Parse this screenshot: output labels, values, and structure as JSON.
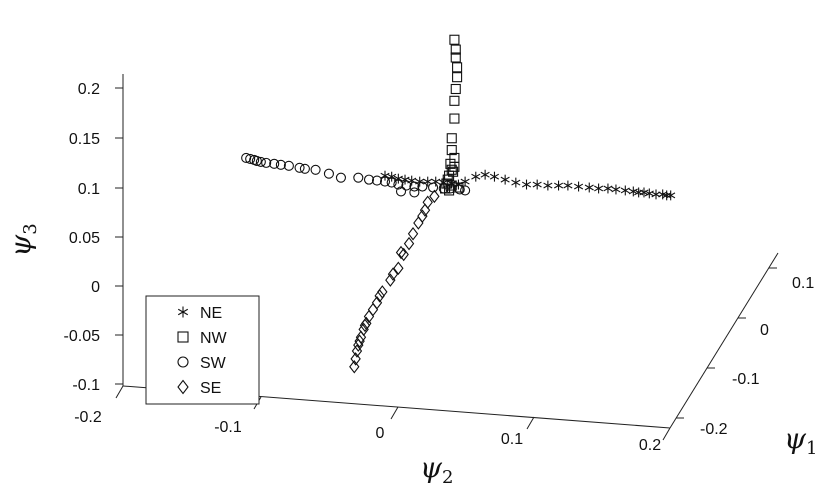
{
  "chart_data": {
    "type": "scatter",
    "title": "",
    "xlabel": "ψ1",
    "ylabel": "ψ2",
    "zlabel": "ψ3",
    "axis_titles": {
      "psi1": {
        "base": "ψ",
        "sub": "1"
      },
      "psi2": {
        "base": "ψ",
        "sub": "2"
      },
      "psi3": {
        "base": "ψ",
        "sub": "3"
      }
    },
    "psi3_ticks": [
      "0.2",
      "0.15",
      "0.1",
      "0.05",
      "0",
      "-0.05",
      "-0.1"
    ],
    "psi2_ticks": [
      "-0.2",
      "-0.1",
      "0",
      "0.1",
      "0.2"
    ],
    "psi1_ticks": [
      "0.1",
      "0",
      "-0.1",
      "-0.2"
    ],
    "legend": {
      "position": "bottom-left",
      "entries": [
        {
          "label": "NE",
          "marker": "asterisk"
        },
        {
          "label": "NW",
          "marker": "square"
        },
        {
          "label": "SW",
          "marker": "circle"
        },
        {
          "label": "SE",
          "marker": "diamond"
        }
      ]
    },
    "series": [
      {
        "name": "NE",
        "marker": "asterisk",
        "points": [
          [
            0.0,
            0.112
          ],
          [
            0.005,
            0.111
          ],
          [
            0.01,
            0.109
          ],
          [
            0.015,
            0.108
          ],
          [
            0.02,
            0.107
          ],
          [
            0.026,
            0.106
          ],
          [
            0.032,
            0.106
          ],
          [
            0.038,
            0.106
          ],
          [
            0.044,
            0.105
          ],
          [
            0.05,
            0.104
          ],
          [
            0.055,
            0.103
          ],
          [
            0.06,
            0.106
          ],
          [
            0.068,
            0.111
          ],
          [
            0.075,
            0.113
          ],
          [
            0.082,
            0.111
          ],
          [
            0.09,
            0.108
          ],
          [
            0.098,
            0.105
          ],
          [
            0.106,
            0.103
          ],
          [
            0.114,
            0.103
          ],
          [
            0.122,
            0.102
          ],
          [
            0.13,
            0.102
          ],
          [
            0.137,
            0.102
          ],
          [
            0.145,
            0.101
          ],
          [
            0.153,
            0.1
          ],
          [
            0.16,
            0.099
          ],
          [
            0.167,
            0.099
          ],
          [
            0.173,
            0.098
          ],
          [
            0.18,
            0.097
          ],
          [
            0.186,
            0.096
          ],
          [
            0.19,
            0.095
          ],
          [
            0.194,
            0.095
          ],
          [
            0.198,
            0.094
          ],
          [
            0.203,
            0.093
          ],
          [
            0.208,
            0.093
          ],
          [
            0.211,
            0.092
          ],
          [
            0.214,
            0.092
          ]
        ]
      },
      {
        "name": "NW",
        "marker": "square",
        "points": [
          [
            0.052,
            0.25
          ],
          [
            0.053,
            0.24
          ],
          [
            0.053,
            0.232
          ],
          [
            0.054,
            0.222
          ],
          [
            0.054,
            0.212
          ],
          [
            0.053,
            0.2
          ],
          [
            0.052,
            0.188
          ],
          [
            0.052,
            0.17
          ],
          [
            0.05,
            0.15
          ],
          [
            0.05,
            0.138
          ],
          [
            0.052,
            0.13
          ],
          [
            0.049,
            0.124
          ],
          [
            0.05,
            0.118
          ],
          [
            0.048,
            0.112
          ],
          [
            0.047,
            0.108
          ],
          [
            0.046,
            0.104
          ],
          [
            0.05,
            0.102
          ],
          [
            0.055,
            0.1
          ],
          [
            0.045,
            0.099
          ],
          [
            0.048,
            0.097
          ],
          [
            0.052,
            0.121
          ],
          [
            0.051,
            0.116
          ]
        ]
      },
      {
        "name": "SW",
        "marker": "circle",
        "points": [
          [
            -0.104,
            0.13
          ],
          [
            -0.101,
            0.129
          ],
          [
            -0.098,
            0.128
          ],
          [
            -0.096,
            0.127
          ],
          [
            -0.093,
            0.126
          ],
          [
            -0.089,
            0.125
          ],
          [
            -0.083,
            0.124
          ],
          [
            -0.078,
            0.123
          ],
          [
            -0.072,
            0.122
          ],
          [
            -0.064,
            0.12
          ],
          [
            -0.06,
            0.119
          ],
          [
            -0.052,
            0.118
          ],
          [
            -0.042,
            0.114
          ],
          [
            -0.033,
            0.11
          ],
          [
            -0.02,
            0.11
          ],
          [
            -0.012,
            0.108
          ],
          [
            -0.006,
            0.107
          ],
          [
            0.0,
            0.106
          ],
          [
            0.005,
            0.105
          ],
          [
            0.01,
            0.103
          ],
          [
            0.016,
            0.102
          ],
          [
            0.022,
            0.101
          ],
          [
            0.028,
            0.101
          ],
          [
            0.036,
            0.1
          ],
          [
            0.044,
            0.099
          ],
          [
            0.049,
            0.099
          ],
          [
            0.056,
            0.098
          ],
          [
            0.06,
            0.097
          ],
          [
            0.012,
            0.096
          ],
          [
            0.022,
            0.095
          ]
        ]
      },
      {
        "name": "SE",
        "marker": "diamond",
        "points": [
          [
            0.037,
            0.091
          ],
          [
            0.032,
            0.085
          ],
          [
            0.03,
            0.077
          ],
          [
            0.025,
            0.064
          ],
          [
            0.021,
            0.053
          ],
          [
            0.018,
            0.043
          ],
          [
            0.014,
            0.032
          ],
          [
            0.01,
            0.018
          ],
          [
            0.004,
            0.006
          ],
          [
            -0.002,
            -0.006
          ],
          [
            -0.006,
            -0.017
          ],
          [
            -0.009,
            -0.024
          ],
          [
            -0.012,
            -0.031
          ],
          [
            -0.014,
            -0.038
          ],
          [
            -0.016,
            -0.044
          ],
          [
            -0.018,
            -0.052
          ],
          [
            -0.02,
            -0.06
          ],
          [
            -0.021,
            -0.066
          ],
          [
            -0.022,
            -0.074
          ],
          [
            -0.023,
            -0.082
          ],
          [
            0.012,
            0.034
          ],
          [
            0.006,
            0.012
          ],
          [
            -0.004,
            -0.01
          ],
          [
            -0.015,
            -0.04
          ],
          [
            -0.019,
            -0.056
          ],
          [
            0.028,
            0.071
          ]
        ]
      }
    ]
  }
}
